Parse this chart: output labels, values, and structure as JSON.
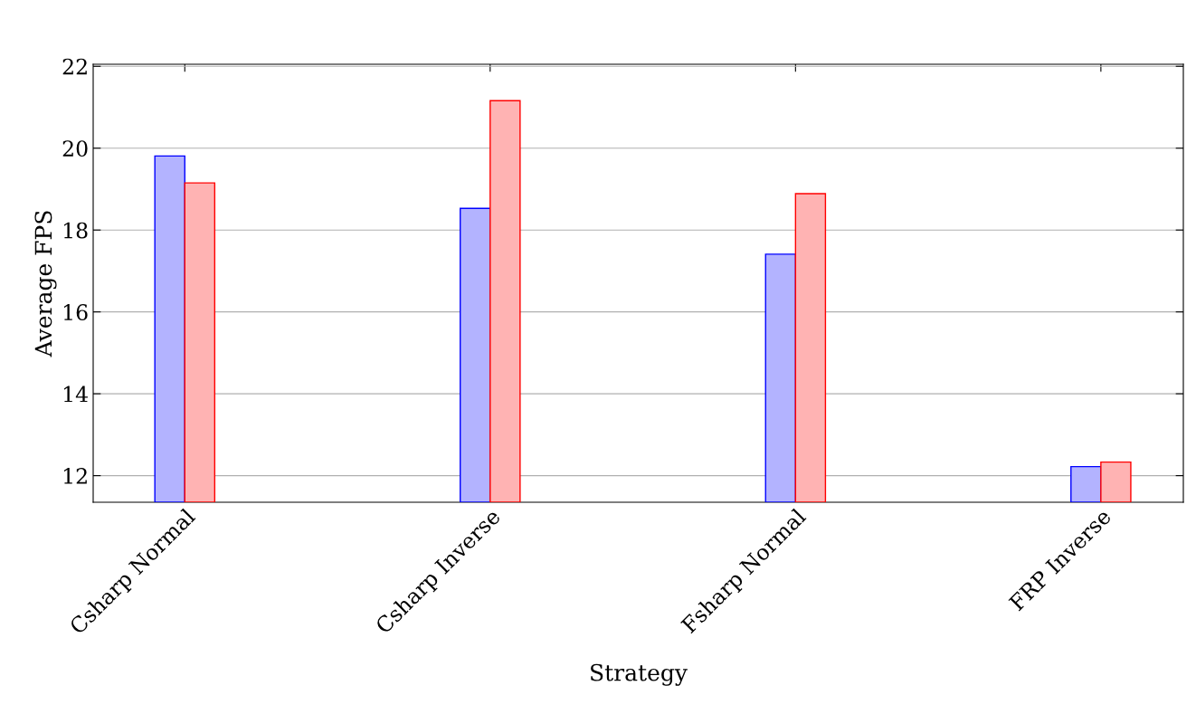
{
  "chart_data": {
    "type": "bar",
    "xlabel": "Strategy",
    "ylabel": "Average FPS",
    "categories": [
      "Csharp Normal",
      "Csharp Inverse",
      "Fsharp Normal",
      "FRP Inverse"
    ],
    "series": [
      {
        "color": "#b3b3ff",
        "values": [
          19.81,
          18.53,
          17.41,
          12.22
        ]
      },
      {
        "color": "#ffb3b3",
        "values": [
          19.15,
          21.16,
          18.89,
          12.33
        ]
      }
    ],
    "ylim": [
      11.35,
      22.05
    ],
    "yticks": [
      12,
      14,
      16,
      18,
      20,
      22
    ],
    "grid": "y"
  }
}
